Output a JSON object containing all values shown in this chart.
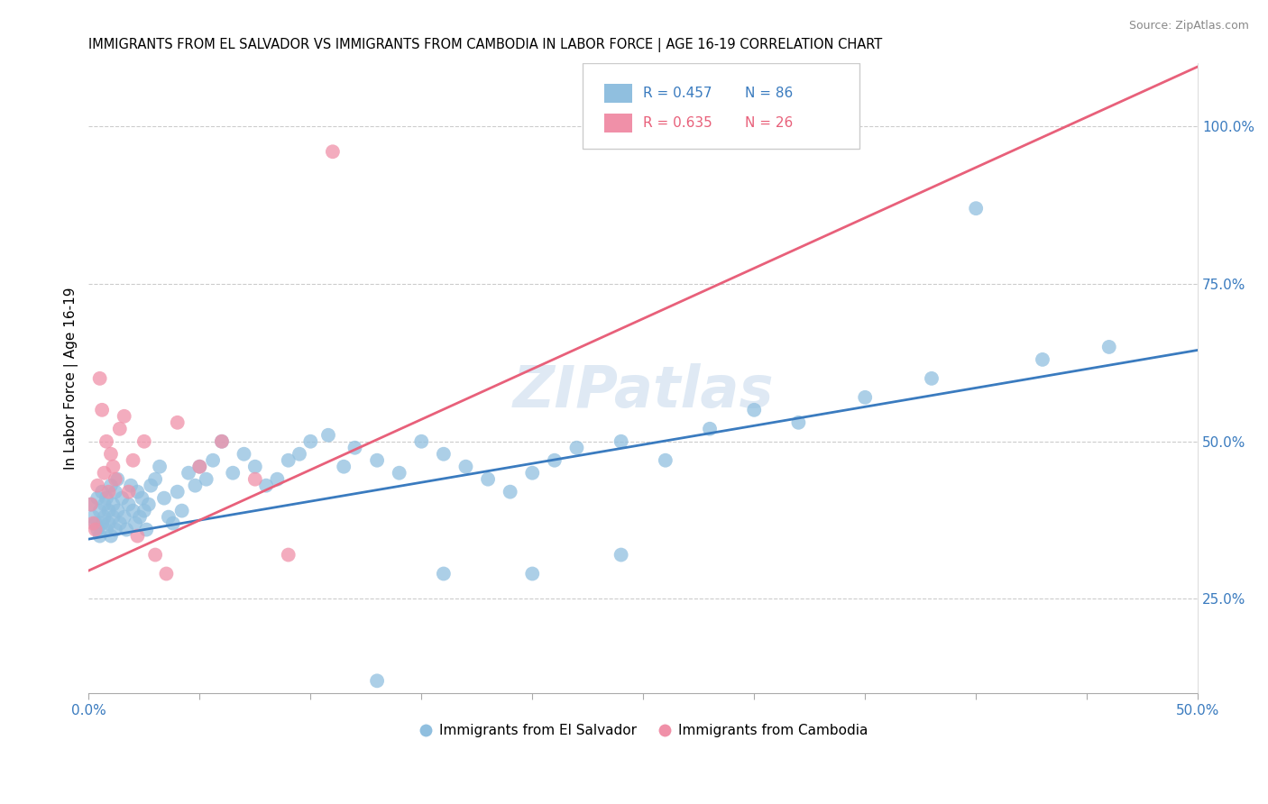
{
  "title": "IMMIGRANTS FROM EL SALVADOR VS IMMIGRANTS FROM CAMBODIA IN LABOR FORCE | AGE 16-19 CORRELATION CHART",
  "source": "Source: ZipAtlas.com",
  "ylabel": "In Labor Force | Age 16-19",
  "xlim": [
    0.0,
    0.5
  ],
  "ylim": [
    0.1,
    1.1
  ],
  "xticks": [
    0.0,
    0.05,
    0.1,
    0.15,
    0.2,
    0.25,
    0.3,
    0.35,
    0.4,
    0.45,
    0.5
  ],
  "xtick_labels": [
    "0.0%",
    "",
    "",
    "",
    "",
    "",
    "",
    "",
    "",
    "",
    "50.0%"
  ],
  "yticks_right": [
    0.25,
    0.5,
    0.75,
    1.0
  ],
  "ytick_labels_right": [
    "25.0%",
    "50.0%",
    "75.0%",
    "100.0%"
  ],
  "blue_color": "#90bfdf",
  "pink_color": "#f090a8",
  "blue_line_color": "#3a7bbf",
  "pink_line_color": "#e8607a",
  "watermark": "ZIPatlas",
  "blue_scatter_x": [
    0.001,
    0.002,
    0.003,
    0.004,
    0.004,
    0.005,
    0.005,
    0.006,
    0.006,
    0.007,
    0.007,
    0.008,
    0.008,
    0.009,
    0.009,
    0.01,
    0.01,
    0.011,
    0.011,
    0.012,
    0.012,
    0.013,
    0.013,
    0.014,
    0.015,
    0.016,
    0.017,
    0.018,
    0.019,
    0.02,
    0.021,
    0.022,
    0.023,
    0.024,
    0.025,
    0.026,
    0.027,
    0.028,
    0.03,
    0.032,
    0.034,
    0.036,
    0.038,
    0.04,
    0.042,
    0.045,
    0.048,
    0.05,
    0.053,
    0.056,
    0.06,
    0.065,
    0.07,
    0.075,
    0.08,
    0.085,
    0.09,
    0.095,
    0.1,
    0.108,
    0.115,
    0.12,
    0.13,
    0.14,
    0.15,
    0.16,
    0.17,
    0.18,
    0.19,
    0.2,
    0.21,
    0.22,
    0.24,
    0.26,
    0.28,
    0.3,
    0.32,
    0.35,
    0.38,
    0.4,
    0.43,
    0.46,
    0.2,
    0.24,
    0.16,
    0.13
  ],
  "blue_scatter_y": [
    0.4,
    0.38,
    0.37,
    0.41,
    0.36,
    0.39,
    0.35,
    0.42,
    0.37,
    0.4,
    0.38,
    0.36,
    0.41,
    0.39,
    0.37,
    0.43,
    0.35,
    0.4,
    0.38,
    0.42,
    0.36,
    0.39,
    0.44,
    0.37,
    0.41,
    0.38,
    0.36,
    0.4,
    0.43,
    0.39,
    0.37,
    0.42,
    0.38,
    0.41,
    0.39,
    0.36,
    0.4,
    0.43,
    0.44,
    0.46,
    0.41,
    0.38,
    0.37,
    0.42,
    0.39,
    0.45,
    0.43,
    0.46,
    0.44,
    0.47,
    0.5,
    0.45,
    0.48,
    0.46,
    0.43,
    0.44,
    0.47,
    0.48,
    0.5,
    0.51,
    0.46,
    0.49,
    0.47,
    0.45,
    0.5,
    0.48,
    0.46,
    0.44,
    0.42,
    0.45,
    0.47,
    0.49,
    0.5,
    0.47,
    0.52,
    0.55,
    0.53,
    0.57,
    0.6,
    0.87,
    0.63,
    0.65,
    0.29,
    0.32,
    0.29,
    0.12
  ],
  "pink_scatter_x": [
    0.001,
    0.002,
    0.003,
    0.004,
    0.005,
    0.006,
    0.007,
    0.008,
    0.009,
    0.01,
    0.011,
    0.012,
    0.014,
    0.016,
    0.018,
    0.02,
    0.022,
    0.025,
    0.03,
    0.035,
    0.04,
    0.05,
    0.06,
    0.075,
    0.09,
    0.11
  ],
  "pink_scatter_y": [
    0.4,
    0.37,
    0.36,
    0.43,
    0.6,
    0.55,
    0.45,
    0.5,
    0.42,
    0.48,
    0.46,
    0.44,
    0.52,
    0.54,
    0.42,
    0.47,
    0.35,
    0.5,
    0.32,
    0.29,
    0.53,
    0.46,
    0.5,
    0.44,
    0.32,
    0.96
  ],
  "blue_line_x": [
    0.0,
    0.5
  ],
  "blue_line_y": [
    0.345,
    0.645
  ],
  "pink_line_x": [
    0.0,
    0.5
  ],
  "pink_line_y": [
    0.295,
    1.095
  ]
}
